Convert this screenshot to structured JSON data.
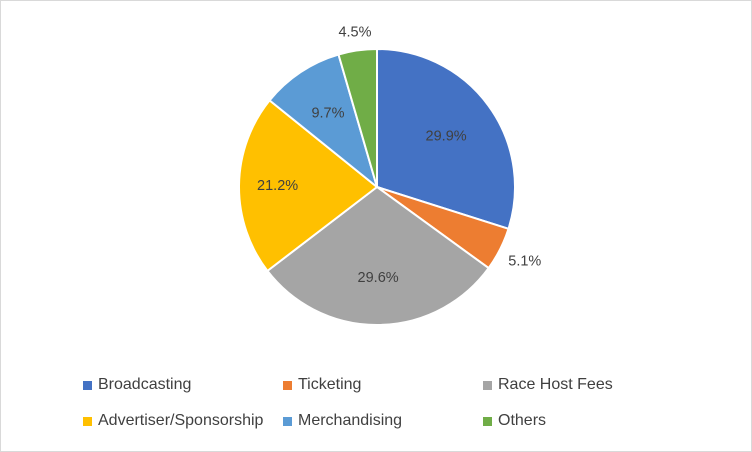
{
  "chart_data": {
    "type": "pie",
    "title": "",
    "start_angle_deg": 0,
    "direction": "clockwise",
    "legend_position": "bottom",
    "slices": [
      {
        "name": "Broadcasting",
        "value": 29.9,
        "label": "29.9%",
        "color": "#4472C4"
      },
      {
        "name": "Ticketing",
        "value": 5.1,
        "label": "5.1%",
        "color": "#ED7D31"
      },
      {
        "name": "Race Host Fees",
        "value": 29.6,
        "label": "29.6%",
        "color": "#A5A5A5"
      },
      {
        "name": "Advertiser/Sponsorship",
        "value": 21.2,
        "label": "21.2%",
        "color": "#FFC000"
      },
      {
        "name": "Merchandising",
        "value": 9.7,
        "label": "9.7%",
        "color": "#5B9BD5"
      },
      {
        "name": "Others",
        "value": 4.5,
        "label": "4.5%",
        "color": "#70AD47"
      }
    ]
  }
}
